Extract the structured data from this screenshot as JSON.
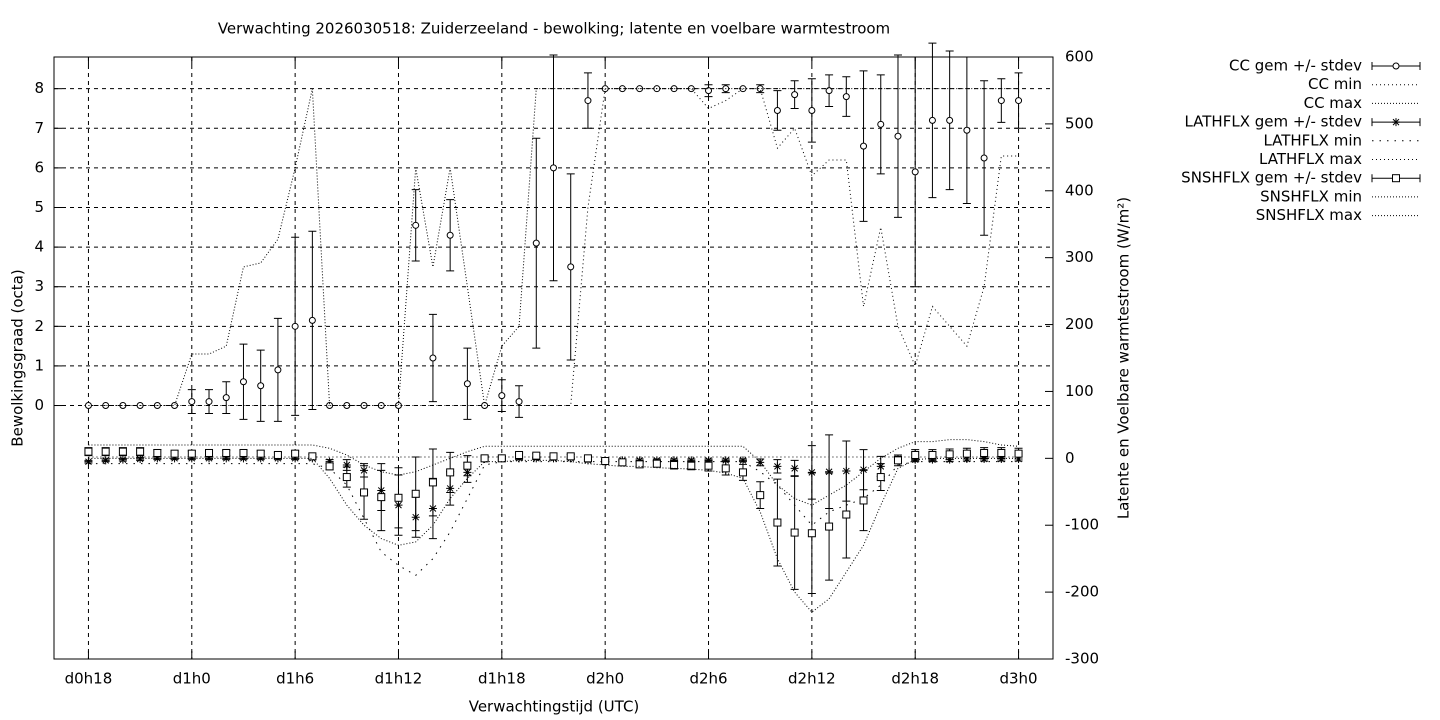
{
  "chart_data": {
    "type": "errorbar",
    "title": "Verwachting 2026030518: Zuiderzeeland - bewolking; latente en voelbare warmtestroom",
    "x_label": "Verwachtingstijd (UTC)",
    "y_label": "Bewolkingsgraad (octa)",
    "y2_label": "Latente en Voelbare warmtestroom (W/m²)",
    "x": [
      18,
      19,
      20,
      21,
      22,
      23,
      24,
      25,
      26,
      27,
      28,
      29,
      30,
      31,
      32,
      33,
      34,
      35,
      36,
      37,
      38,
      39,
      40,
      41,
      42,
      43,
      44,
      45,
      46,
      47,
      48,
      49,
      50,
      51,
      52,
      53,
      54,
      55,
      56,
      57,
      58,
      59,
      60,
      61,
      62,
      63,
      64,
      65,
      66,
      67,
      68,
      69,
      70,
      71,
      72
    ],
    "xlim": [
      16,
      74
    ],
    "xticks": [
      {
        "value": 18,
        "label": "d0h18"
      },
      {
        "value": 24,
        "label": "d1h0"
      },
      {
        "value": 30,
        "label": "d1h6"
      },
      {
        "value": 36,
        "label": "d1h12"
      },
      {
        "value": 42,
        "label": "d1h18"
      },
      {
        "value": 48,
        "label": "d2h0"
      },
      {
        "value": 54,
        "label": "d2h6"
      },
      {
        "value": 60,
        "label": "d2h12"
      },
      {
        "value": 66,
        "label": "d2h18"
      },
      {
        "value": 72,
        "label": "d3h0"
      }
    ],
    "ylim": [
      -6.4,
      8.8
    ],
    "yticks": [
      0,
      1,
      2,
      3,
      4,
      5,
      6,
      7,
      8
    ],
    "y2lim": [
      -300,
      600
    ],
    "y2ticks": [
      -300,
      -200,
      -100,
      0,
      100,
      200,
      300,
      400,
      500,
      600
    ],
    "grid": true,
    "legend": "right",
    "series": [
      {
        "name": "CC gem +/- stdev",
        "color": "#000000",
        "style": "errorbar",
        "marker": "circle",
        "axis": "y",
        "values": [
          0,
          0,
          0,
          0,
          0,
          0,
          0.1,
          0.1,
          0.2,
          0.6,
          0.5,
          0.9,
          2.0,
          2.15,
          0,
          0,
          0,
          0,
          0,
          4.55,
          1.2,
          4.3,
          0.55,
          0,
          0.25,
          0.1,
          4.1,
          6.0,
          3.5,
          7.7,
          8,
          8,
          8,
          8,
          8,
          8,
          7.95,
          8,
          8,
          8,
          7.45,
          7.85,
          7.45,
          7.95,
          7.8,
          6.55,
          7.1,
          6.8,
          5.9,
          7.2,
          7.2,
          6.95,
          6.25,
          7.7,
          7.7
        ],
        "errors": [
          0,
          0,
          0,
          0,
          0,
          0,
          0.3,
          0.3,
          0.4,
          0.95,
          0.9,
          1.3,
          2.25,
          2.25,
          0,
          0,
          0,
          0,
          0,
          0.9,
          1.1,
          0.9,
          0.9,
          0,
          0.4,
          0.4,
          2.65,
          2.85,
          2.35,
          0.7,
          0,
          0,
          0,
          0,
          0,
          0,
          0.15,
          0.1,
          0,
          0.1,
          0.5,
          0.35,
          0.8,
          0.4,
          0.5,
          1.9,
          1.25,
          2.05,
          2.9,
          1.95,
          1.75,
          1.85,
          1.95,
          0.55,
          0.7
        ]
      },
      {
        "name": "CC min",
        "color": "#000000",
        "style": "line",
        "dash": "1 3",
        "axis": "y",
        "values": [
          0,
          0,
          0,
          0,
          0,
          0,
          0,
          0,
          0,
          0,
          0,
          0,
          0,
          0,
          0,
          0,
          0,
          0,
          0,
          0,
          0,
          0,
          0,
          0,
          0,
          0,
          0,
          0,
          0,
          5,
          8,
          8,
          8,
          8,
          8,
          8,
          7.5,
          7.7,
          8,
          8,
          6.5,
          7,
          5.8,
          6.2,
          6.2,
          2.5,
          4.5,
          2,
          1,
          2.5,
          2,
          1.5,
          3,
          6.3,
          6.3
        ]
      },
      {
        "name": "CC max",
        "color": "#000000",
        "style": "line",
        "dash": "1 2",
        "axis": "y",
        "values": [
          0,
          0,
          0,
          0,
          0,
          0,
          1.3,
          1.3,
          1.5,
          3.5,
          3.6,
          4.2,
          6,
          8,
          0,
          0,
          0,
          0,
          0,
          6,
          3.5,
          6,
          3,
          0,
          1.5,
          2,
          8,
          8,
          8,
          8,
          8,
          8,
          8,
          8,
          8,
          8,
          8,
          8,
          8,
          8,
          8,
          8,
          8,
          8,
          8,
          8,
          8,
          8,
          8,
          8,
          8,
          8,
          8,
          8,
          8
        ]
      },
      {
        "name": "LATHFLX gem +/- stdev",
        "color": "#000000",
        "style": "errorbar",
        "marker": "star",
        "axis": "y2",
        "values": [
          -5,
          -3,
          -2,
          -1,
          0,
          0,
          0,
          0,
          0,
          0,
          0,
          0,
          0,
          0,
          -5,
          -10,
          -18,
          -48,
          -70,
          -88,
          -75,
          -45,
          -21,
          -1,
          0,
          0,
          0,
          0,
          0,
          -3,
          -3,
          -3,
          -3,
          -3,
          -3,
          -3,
          -3,
          -3,
          -3,
          -6,
          -12,
          -15,
          -21,
          -20,
          -19,
          -17,
          -12,
          -1,
          -2,
          -2,
          -2,
          -1,
          -1,
          -1,
          -1
        ],
        "errors": [
          2,
          2,
          2,
          2,
          2,
          2,
          2,
          2,
          2,
          2,
          2,
          2,
          2,
          2,
          3,
          8,
          10,
          30,
          45,
          30,
          45,
          25,
          15,
          3,
          2,
          2,
          2,
          2,
          2,
          2,
          2,
          2,
          2,
          2,
          2,
          2,
          2,
          2,
          2,
          5,
          10,
          12,
          40,
          55,
          45,
          30,
          15,
          4,
          3,
          3,
          3,
          3,
          3,
          3,
          3
        ]
      },
      {
        "name": "LATHFLX min",
        "color": "#000000",
        "style": "line",
        "dash": "1.5 6",
        "axis": "y2",
        "values": [
          -8,
          -8,
          -8,
          -8,
          -8,
          -8,
          -8,
          -8,
          -8,
          -8,
          -8,
          -8,
          -8,
          -8,
          -15,
          -40,
          -90,
          -140,
          -160,
          -175,
          -150,
          -110,
          -60,
          -10,
          -5,
          -5,
          -5,
          -5,
          -5,
          -5,
          -5,
          -5,
          -5,
          -5,
          -5,
          -5,
          -5,
          -5,
          -5,
          -20,
          -40,
          -70,
          -100,
          -80,
          -70,
          -60,
          -40,
          -10,
          -5,
          -5,
          -5,
          -5,
          -5,
          -5,
          -5
        ]
      },
      {
        "name": "LATHFLX max",
        "color": "#000000",
        "style": "line",
        "dash": "1 3",
        "axis": "y2",
        "values": [
          2,
          2,
          2,
          2,
          2,
          2,
          2,
          2,
          2,
          2,
          2,
          2,
          2,
          2,
          2,
          2,
          2,
          2,
          2,
          2,
          2,
          2,
          2,
          2,
          2,
          2,
          2,
          2,
          2,
          2,
          2,
          2,
          2,
          2,
          2,
          2,
          2,
          2,
          2,
          2,
          2,
          2,
          2,
          2,
          2,
          2,
          2,
          2,
          2,
          2,
          2,
          2,
          2,
          2,
          2
        ]
      },
      {
        "name": "SNSHFLX gem +/- stdev",
        "color": "#000000",
        "style": "errorbar",
        "marker": "square",
        "axis": "y2",
        "values": [
          10,
          10,
          10,
          10,
          8,
          7,
          7,
          8,
          8,
          8,
          7,
          5,
          7,
          3,
          -12,
          -28,
          -51,
          -58,
          -59,
          -53,
          -36,
          -21,
          -11,
          0,
          0,
          5,
          4,
          3,
          3,
          0,
          -4,
          -6,
          -9,
          -8,
          -10,
          -11,
          -11,
          -15,
          -21,
          -55,
          -96,
          -111,
          -112,
          -102,
          -84,
          -63,
          -28,
          -3,
          5,
          5,
          6,
          7,
          8,
          8,
          7
        ],
        "errors": [
          6,
          6,
          6,
          6,
          5,
          4,
          4,
          4,
          4,
          4,
          4,
          4,
          4,
          3,
          5,
          15,
          40,
          50,
          45,
          55,
          50,
          30,
          15,
          4,
          3,
          3,
          3,
          3,
          3,
          2,
          2,
          3,
          4,
          5,
          6,
          6,
          8,
          10,
          12,
          20,
          65,
          85,
          90,
          80,
          65,
          45,
          20,
          8,
          8,
          8,
          8,
          8,
          8,
          8,
          8
        ]
      },
      {
        "name": "SNSHFLX min",
        "color": "#000000",
        "style": "line",
        "dash": "1 2",
        "axis": "y2",
        "values": [
          0,
          0,
          0,
          0,
          0,
          0,
          0,
          0,
          0,
          0,
          0,
          0,
          0,
          0,
          -30,
          -70,
          -100,
          -120,
          -130,
          -125,
          -100,
          -60,
          -30,
          -5,
          -5,
          -3,
          -3,
          -3,
          -5,
          -8,
          -10,
          -12,
          -12,
          -14,
          -15,
          -16,
          -18,
          -22,
          -30,
          -80,
          -150,
          -200,
          -230,
          -210,
          -170,
          -130,
          -70,
          -15,
          -2,
          0,
          0,
          0,
          0,
          0,
          0
        ]
      },
      {
        "name": "SNSHFLX max",
        "color": "#000000",
        "style": "line",
        "dash": "1 2",
        "axis": "y2",
        "values": [
          20,
          20,
          20,
          20,
          20,
          20,
          20,
          20,
          20,
          20,
          20,
          20,
          20,
          20,
          15,
          5,
          -10,
          -20,
          -25,
          -20,
          -10,
          0,
          10,
          18,
          18,
          18,
          18,
          18,
          18,
          18,
          18,
          18,
          18,
          18,
          18,
          18,
          18,
          18,
          18,
          -5,
          -40,
          -60,
          -70,
          -55,
          -40,
          -20,
          0,
          15,
          25,
          25,
          28,
          28,
          25,
          20,
          18
        ]
      }
    ]
  }
}
